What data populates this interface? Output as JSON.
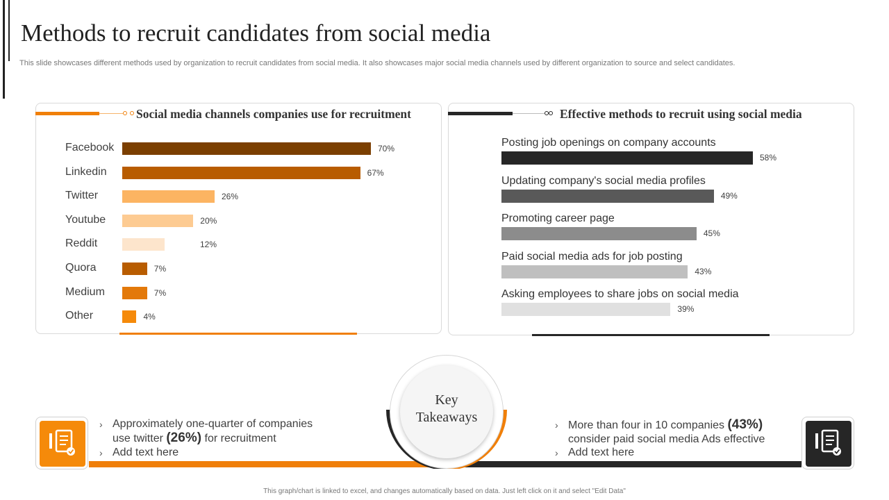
{
  "header": {
    "title": "Methods to recruit candidates from social media",
    "subtitle": "This slide showcases different methods used by organization to recruit candidates from social media. It also showcases major social media channels used by different organization to source and select candidates."
  },
  "colors": {
    "orange": "#f07f09",
    "dark": "#262626"
  },
  "chart_data": [
    {
      "type": "bar",
      "orientation": "horizontal",
      "title": "Social media channels companies use for recruitment",
      "categories": [
        "Facebook",
        "Linkedin",
        "Twitter",
        "Youtube",
        "Reddit",
        "Quora",
        "Medium",
        "Other"
      ],
      "values": [
        70,
        67,
        26,
        20,
        12,
        7,
        7,
        4
      ],
      "value_labels": [
        "70%",
        "67%",
        "26%",
        "20%",
        "12%",
        "7%",
        "7%",
        "4%"
      ],
      "colors": [
        "#7b3f00",
        "#b85c00",
        "#fcb462",
        "#fdcb92",
        "#fde5cc",
        "#b85c00",
        "#e3790a",
        "#f58a0a"
      ],
      "unit": "%",
      "xlim": [
        0,
        100
      ]
    },
    {
      "type": "bar",
      "orientation": "horizontal",
      "title": "Effective methods to recruit using social media",
      "categories": [
        "Posting job openings on company accounts",
        "Updating company's social media profiles",
        "Promoting career page",
        "Paid social media ads for job posting",
        "Asking employees to share jobs on social media"
      ],
      "values": [
        58,
        49,
        45,
        43,
        39
      ],
      "value_labels": [
        "58%",
        "49%",
        "45%",
        "43%",
        "39%"
      ],
      "colors": [
        "#262626",
        "#595959",
        "#8c8c8c",
        "#bfbfbf",
        "#e0e0e0"
      ],
      "unit": "%",
      "xlim": [
        0,
        100
      ]
    }
  ],
  "takeaways": {
    "center_title_line1": "Key",
    "center_title_line2": "Takeaways",
    "left_icon": "checklist-icon",
    "right_icon": "checklist-icon",
    "left": {
      "item1_pre": "Approximately one-quarter of companies use twitter ",
      "item1_highlight": "(26%)",
      "item1_post": " for recruitment",
      "item2": "Add text here"
    },
    "right": {
      "item1_pre": "More than four in 10 companies ",
      "item1_highlight": "(43%)",
      "item1_post": " consider paid social media Ads effective",
      "item2": "Add text here"
    }
  },
  "footer": {
    "note": "This graph/chart is linked to excel, and changes automatically based on data. Just left click on it and select \"Edit Data\""
  }
}
